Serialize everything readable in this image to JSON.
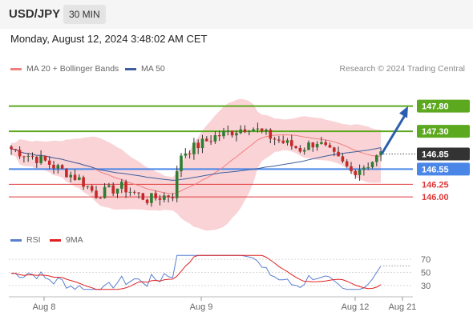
{
  "header": {
    "symbol": "USD/JPY",
    "timeframe": "30 MIN"
  },
  "datetime": "Monday, August 12, 2024 3:48:02 AM CET",
  "legend": {
    "ma20_label": "MA 20 + Bollinger Bands",
    "ma50_label": "MA 50",
    "rsi_label": "RSI",
    "rsi_ma_label": "9MA"
  },
  "credit": "Research © 2024 Trading Central",
  "colors": {
    "ma20": "#f08080",
    "ma50": "#3f5f9e",
    "band_fill": "#f7c4c8",
    "resistance": "#5ca81f",
    "support_key": "#4a86e8",
    "support": "#e03a3a",
    "candle_up": "#2e7d32",
    "candle_down": "#c62828",
    "rsi": "#5b7fcf",
    "rsi_ma": "#e02020",
    "arrow": "#2b5fad",
    "current_price_bg": "#333333"
  },
  "chart_data": {
    "type": "candlestick",
    "y_axis": {
      "range": [
        145.43,
        148.35
      ]
    },
    "levels": {
      "resistances": [
        "147.80",
        "147.30"
      ],
      "current": "146.85",
      "pivot": "146.55",
      "supports": [
        "146.25",
        "146.00"
      ]
    },
    "projection": {
      "from": 146.85,
      "to": 147.8
    },
    "x_ticks": [
      "Aug 8",
      "Aug 9",
      "Aug 12",
      "Aug 21"
    ],
    "rsi_ticks": [
      "70",
      "50",
      "30"
    ],
    "rsi_range": [
      20,
      80
    ]
  }
}
